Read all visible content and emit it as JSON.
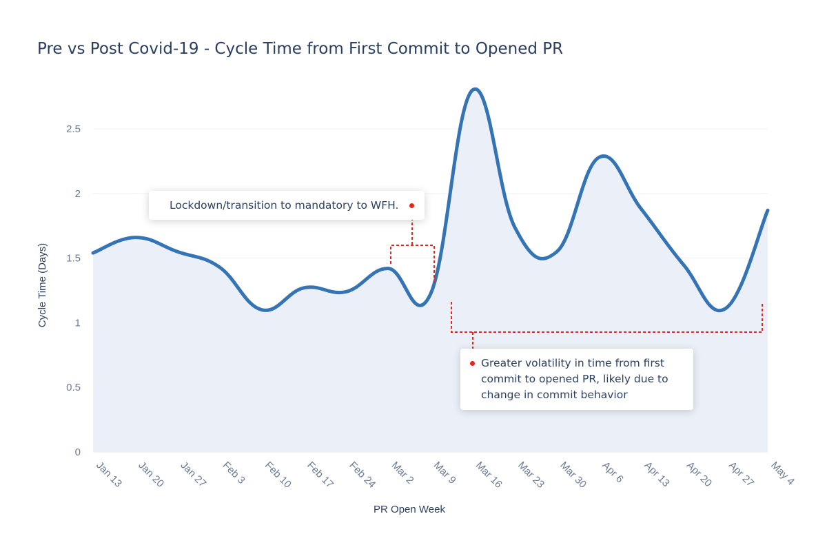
{
  "title": "Pre vs Post Covid-19 - Cycle Time from First Commit to Opened PR",
  "chart_data": {
    "type": "area",
    "title": "Pre vs Post Covid-19 - Cycle Time from First Commit to Opened PR",
    "xlabel": "PR Open Week",
    "ylabel": "Cycle Time (Days)",
    "categories": [
      "Jan 13",
      "Jan 20",
      "Jan 27",
      "Feb 3",
      "Feb 10",
      "Feb 17",
      "Feb 24",
      "Mar 2",
      "Mar 9",
      "Mar 16",
      "Mar 23",
      "Mar 30",
      "Apr 6",
      "Apr 13",
      "Apr 20",
      "Apr 27",
      "May 4"
    ],
    "y_ticks": [
      "0",
      "0.5",
      "1",
      "1.5",
      "2",
      "2.5"
    ],
    "ylim": [
      0,
      2.9
    ],
    "grid": true,
    "series": [
      {
        "values": [
          1.54,
          1.66,
          1.55,
          1.43,
          1.1,
          1.27,
          1.24,
          1.42,
          1.22,
          2.8,
          1.74,
          1.55,
          2.28,
          1.88,
          1.45,
          1.11,
          1.87
        ],
        "color": "#3474b4",
        "fill": "#ebf0f8"
      }
    ],
    "annotations": [
      {
        "text": "Lockdown/transition to mandatory to WFH."
      },
      {
        "text": "Greater volatility in time from first commit to opened PR, likely due to change in commit behavior"
      }
    ],
    "annotation_color": "#e8251c"
  }
}
